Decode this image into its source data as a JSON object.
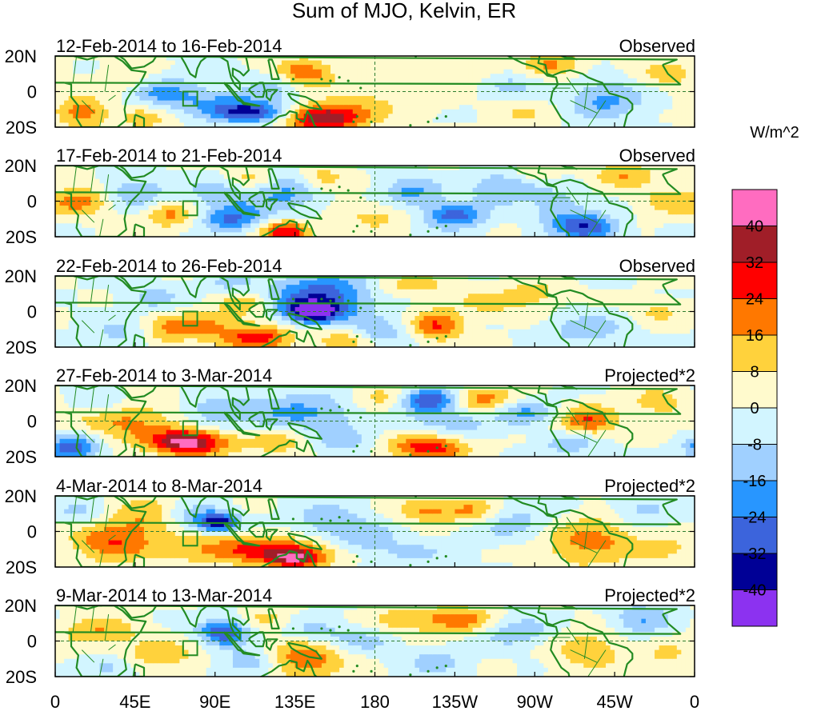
{
  "chart_data": {
    "type": "heatmap",
    "title": "Sum of MJO, Kelvin, ER",
    "colorbar": {
      "units": "W/m^2",
      "tick_labels": [
        "40",
        "32",
        "24",
        "16",
        "8",
        "0",
        "-8",
        "-16",
        "-24",
        "-32",
        "-40"
      ],
      "colors": [
        "#ff6cc0",
        "#a01e28",
        "#ff0000",
        "#ff7800",
        "#ffd23c",
        "#fffacd",
        "#d2f5ff",
        "#a0d0ff",
        "#2896ff",
        "#3c64dc",
        "#000096",
        "#8c32f0"
      ]
    },
    "x_ticks": [
      "0",
      "45E",
      "90E",
      "135E",
      "180",
      "135W",
      "90W",
      "45W",
      "0"
    ],
    "y_ticks": [
      "20N",
      "0",
      "20S"
    ],
    "lat_range": [
      -20,
      20
    ],
    "lon_range": [
      0,
      360
    ],
    "panels": [
      {
        "period": "12-Feb-2014 to 16-Feb-2014",
        "type": "Observed",
        "blobs": [
          [
            15,
            -12,
            10,
            6,
            22
          ],
          [
            40,
            5,
            12,
            6,
            10
          ],
          [
            60,
            0,
            15,
            6,
            -18
          ],
          [
            95,
            -5,
            20,
            5,
            -14
          ],
          [
            110,
            -12,
            16,
            4,
            -34
          ],
          [
            150,
            -15,
            15,
            5,
            40
          ],
          [
            140,
            10,
            12,
            6,
            24
          ],
          [
            200,
            3,
            20,
            8,
            8
          ],
          [
            235,
            12,
            10,
            5,
            10
          ],
          [
            255,
            4,
            14,
            6,
            -10
          ],
          [
            280,
            15,
            12,
            5,
            18
          ],
          [
            310,
            -5,
            15,
            8,
            -18
          ],
          [
            345,
            10,
            12,
            6,
            12
          ],
          [
            170,
            -10,
            15,
            6,
            10
          ],
          [
            125,
            5,
            12,
            5,
            -12
          ],
          [
            50,
            -15,
            10,
            5,
            12
          ],
          [
            265,
            -12,
            14,
            5,
            8
          ]
        ]
      },
      {
        "period": "17-Feb-2014 to 21-Feb-2014",
        "type": "Observed",
        "blobs": [
          [
            15,
            0,
            12,
            6,
            18
          ],
          [
            45,
            5,
            12,
            6,
            -16
          ],
          [
            65,
            -8,
            10,
            5,
            18
          ],
          [
            95,
            5,
            15,
            6,
            -14
          ],
          [
            100,
            -10,
            12,
            5,
            -26
          ],
          [
            130,
            -17,
            10,
            4,
            34
          ],
          [
            130,
            5,
            15,
            8,
            -18
          ],
          [
            150,
            12,
            10,
            5,
            16
          ],
          [
            180,
            -8,
            15,
            6,
            10
          ],
          [
            200,
            5,
            12,
            6,
            -18
          ],
          [
            225,
            -8,
            12,
            5,
            -28
          ],
          [
            255,
            8,
            15,
            6,
            -18
          ],
          [
            285,
            -5,
            12,
            8,
            -12
          ],
          [
            300,
            -15,
            12,
            5,
            -30
          ],
          [
            320,
            15,
            12,
            5,
            16
          ],
          [
            345,
            0,
            12,
            6,
            12
          ],
          [
            110,
            12,
            10,
            5,
            16
          ],
          [
            270,
            15,
            10,
            5,
            10
          ]
        ]
      },
      {
        "period": "22-Feb-2014 to 26-Feb-2014",
        "type": "Observed",
        "blobs": [
          [
            40,
            -12,
            15,
            6,
            -12
          ],
          [
            55,
            8,
            12,
            6,
            -10
          ],
          [
            75,
            -8,
            18,
            5,
            22
          ],
          [
            115,
            -15,
            15,
            5,
            28
          ],
          [
            105,
            5,
            10,
            6,
            16
          ],
          [
            150,
            8,
            20,
            10,
            -30
          ],
          [
            145,
            0,
            10,
            4,
            -36
          ],
          [
            165,
            -15,
            12,
            5,
            18
          ],
          [
            200,
            15,
            15,
            5,
            12
          ],
          [
            215,
            -8,
            10,
            6,
            24
          ],
          [
            245,
            5,
            15,
            6,
            10
          ],
          [
            270,
            10,
            10,
            5,
            12
          ],
          [
            300,
            -10,
            15,
            6,
            -14
          ],
          [
            340,
            0,
            10,
            5,
            10
          ],
          [
            180,
            -12,
            12,
            5,
            -18
          ],
          [
            100,
            15,
            10,
            5,
            -12
          ],
          [
            60,
            -15,
            10,
            4,
            10
          ]
        ]
      },
      {
        "period": "27-Feb-2014 to 3-Mar-2014",
        "type": "Projected*2",
        "blobs": [
          [
            10,
            -15,
            10,
            5,
            -32
          ],
          [
            40,
            0,
            20,
            8,
            18
          ],
          [
            75,
            -12,
            15,
            5,
            44
          ],
          [
            90,
            5,
            12,
            6,
            -14
          ],
          [
            140,
            5,
            25,
            8,
            -18
          ],
          [
            125,
            -12,
            15,
            5,
            14
          ],
          [
            185,
            12,
            15,
            6,
            14
          ],
          [
            210,
            12,
            12,
            5,
            -34
          ],
          [
            225,
            0,
            18,
            6,
            -12
          ],
          [
            210,
            -15,
            15,
            5,
            30
          ],
          [
            240,
            12,
            12,
            5,
            22
          ],
          [
            300,
            0,
            12,
            6,
            24
          ],
          [
            290,
            -12,
            12,
            5,
            -14
          ],
          [
            340,
            10,
            12,
            6,
            12
          ],
          [
            265,
            5,
            12,
            5,
            -16
          ],
          [
            25,
            10,
            12,
            5,
            -12
          ],
          [
            160,
            -12,
            12,
            5,
            -12
          ]
        ]
      },
      {
        "period": "4-Mar-2014 to 8-Mar-2014",
        "type": "Projected*2",
        "blobs": [
          [
            30,
            -5,
            15,
            8,
            22
          ],
          [
            55,
            8,
            15,
            8,
            16
          ],
          [
            75,
            8,
            12,
            6,
            -16
          ],
          [
            92,
            5,
            8,
            4,
            -36
          ],
          [
            110,
            -10,
            35,
            6,
            24
          ],
          [
            135,
            -15,
            12,
            4,
            32
          ],
          [
            155,
            5,
            15,
            8,
            -14
          ],
          [
            175,
            -5,
            12,
            6,
            -14
          ],
          [
            210,
            12,
            12,
            5,
            18
          ],
          [
            235,
            12,
            10,
            5,
            18
          ],
          [
            260,
            5,
            20,
            8,
            -12
          ],
          [
            300,
            -5,
            20,
            10,
            20
          ],
          [
            330,
            12,
            12,
            6,
            -12
          ],
          [
            200,
            -12,
            15,
            5,
            -10
          ],
          [
            15,
            10,
            12,
            6,
            -10
          ],
          [
            345,
            -10,
            10,
            5,
            10
          ]
        ]
      },
      {
        "period": "9-Mar-2014 to 13-Mar-2014",
        "type": "Projected*2",
        "blobs": [
          [
            25,
            5,
            15,
            6,
            16
          ],
          [
            60,
            -8,
            15,
            6,
            14
          ],
          [
            95,
            5,
            10,
            5,
            -32
          ],
          [
            110,
            -12,
            12,
            5,
            -16
          ],
          [
            140,
            -10,
            15,
            8,
            24
          ],
          [
            145,
            5,
            15,
            6,
            -12
          ],
          [
            200,
            12,
            15,
            5,
            16
          ],
          [
            230,
            12,
            12,
            5,
            20
          ],
          [
            215,
            -12,
            12,
            5,
            -12
          ],
          [
            260,
            5,
            15,
            6,
            -14
          ],
          [
            300,
            -5,
            15,
            8,
            14
          ],
          [
            330,
            12,
            12,
            6,
            -16
          ],
          [
            30,
            -15,
            10,
            5,
            -12
          ],
          [
            175,
            0,
            12,
            5,
            -10
          ],
          [
            345,
            -8,
            10,
            5,
            10
          ],
          [
            120,
            12,
            10,
            5,
            12
          ]
        ]
      }
    ]
  }
}
